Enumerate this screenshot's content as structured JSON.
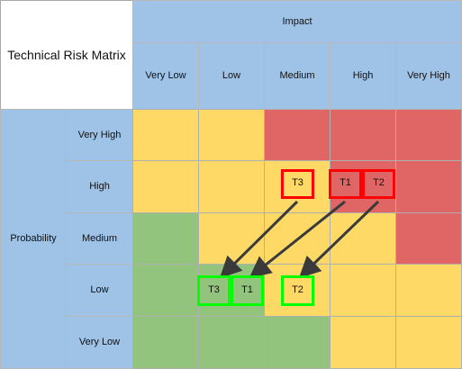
{
  "matrix": {
    "title": "Technical Risk Matrix",
    "impact_label": "Impact",
    "probability_label": "Probability",
    "impact_levels": [
      "Very Low",
      "Low",
      "Medium",
      "High",
      "Very High"
    ],
    "probability_levels": [
      "Very High",
      "High",
      "Medium",
      "Low",
      "Very Low"
    ],
    "colors": {
      "header": "#9fc3e7",
      "yellow": "#ffd966",
      "red": "#e06666",
      "green": "#93c47d",
      "before_border": "#ff0000",
      "after_border": "#00ff00",
      "arrow": "#3a3a3a"
    },
    "cells": [
      [
        "yellow",
        "yellow",
        "red",
        "red",
        "red"
      ],
      [
        "yellow",
        "yellow",
        "yellow",
        "red",
        "red"
      ],
      [
        "green",
        "yellow",
        "yellow",
        "yellow",
        "red"
      ],
      [
        "green",
        "green",
        "yellow",
        "yellow",
        "yellow"
      ],
      [
        "green",
        "green",
        "green",
        "yellow",
        "yellow"
      ]
    ]
  },
  "tasks": {
    "before": [
      {
        "label": "T3",
        "probability": "High",
        "impact": "Medium",
        "slot": "single"
      },
      {
        "label": "T1",
        "probability": "High",
        "impact": "High",
        "slot": "left-half"
      },
      {
        "label": "T2",
        "probability": "High",
        "impact": "High",
        "slot": "right-half"
      }
    ],
    "after": [
      {
        "label": "T3",
        "probability": "Low",
        "impact": "Low",
        "slot": "left-half"
      },
      {
        "label": "T1",
        "probability": "Low",
        "impact": "Low",
        "slot": "right-half"
      },
      {
        "label": "T2",
        "probability": "Low",
        "impact": "Medium",
        "slot": "single"
      }
    ],
    "moves": [
      {
        "from": "T3",
        "to": "T3"
      },
      {
        "from": "T1",
        "to": "T1"
      },
      {
        "from": "T2",
        "to": "T2"
      }
    ]
  }
}
